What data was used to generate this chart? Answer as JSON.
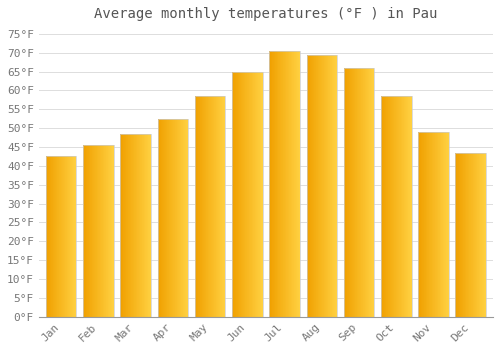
{
  "title": "Average monthly temperatures (°F ) in Pau",
  "months": [
    "Jan",
    "Feb",
    "Mar",
    "Apr",
    "May",
    "Jun",
    "Jul",
    "Aug",
    "Sep",
    "Oct",
    "Nov",
    "Dec"
  ],
  "values": [
    42.5,
    45.5,
    48.5,
    52.5,
    58.5,
    65.0,
    70.5,
    69.5,
    66.0,
    58.5,
    49.0,
    43.5
  ],
  "bar_color_left": "#F0A000",
  "bar_color_right": "#FFD040",
  "background_color": "#FFFFFF",
  "grid_color": "#DDDDDD",
  "ylim": [
    0,
    77
  ],
  "ytick_step": 5,
  "title_fontsize": 10,
  "tick_fontsize": 8,
  "font_family": "monospace",
  "bar_width": 0.82,
  "gradient_steps": 50
}
